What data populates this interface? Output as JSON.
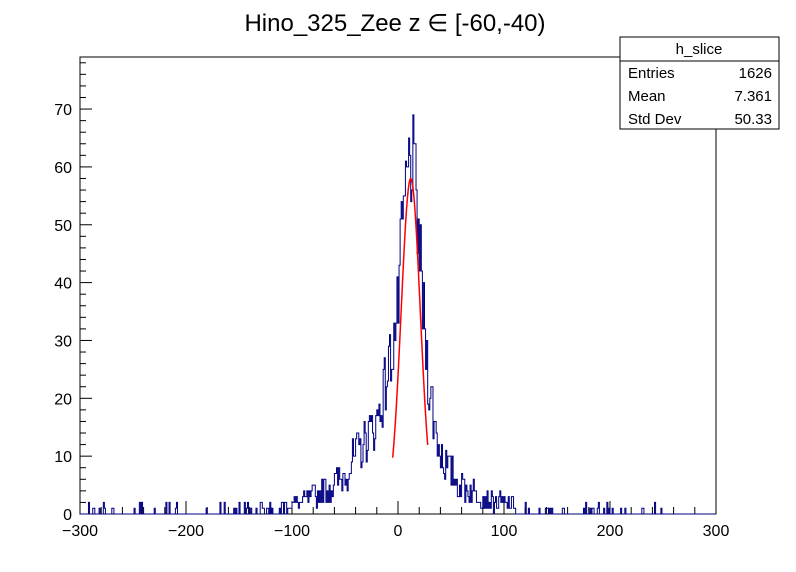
{
  "chart_data": {
    "type": "histogram",
    "title": "Hino_325_Zee z  ∈ [-60,-40)",
    "xlabel": "",
    "ylabel": "",
    "xlim": [
      -300,
      300
    ],
    "ylim": [
      0,
      79
    ],
    "x_ticks": [
      -300,
      -200,
      -100,
      0,
      100,
      200,
      300
    ],
    "y_ticks": [
      0,
      10,
      20,
      30,
      40,
      50,
      60,
      70
    ],
    "histogram_color": "#000080",
    "fit_color": "#ff0000",
    "stats": {
      "name": "h_slice",
      "rows": [
        {
          "label": "Entries",
          "value": "1626"
        },
        {
          "label": "Mean",
          "value": "7.361"
        },
        {
          "label": "Std Dev",
          "value": "50.33"
        }
      ]
    },
    "series": [
      {
        "kind": "histogram_envelope",
        "x": [
          -300,
          -280,
          -260,
          -240,
          -220,
          -200,
          -180,
          -160,
          -140,
          -120,
          -100,
          -90,
          -80,
          -70,
          -60,
          -50,
          -40,
          -30,
          -20,
          -15,
          -10,
          -5,
          0,
          3,
          6,
          9,
          12,
          15,
          18,
          21,
          24,
          27,
          30,
          35,
          40,
          50,
          60,
          70,
          80,
          90,
          100,
          120,
          140,
          160,
          180,
          200,
          220,
          240,
          260,
          280,
          300
        ],
        "values": [
          0,
          1,
          1,
          1,
          1,
          1,
          1,
          1,
          1,
          1,
          2,
          2,
          3,
          4,
          5,
          7,
          10,
          13,
          16,
          20,
          24,
          29,
          35,
          45,
          53,
          58,
          62,
          59,
          52,
          44,
          35,
          28,
          22,
          15,
          11,
          7,
          5,
          4,
          3,
          2,
          2,
          1,
          1,
          1,
          1,
          1,
          1,
          1,
          0,
          0,
          0
        ]
      },
      {
        "kind": "gaussian_fit",
        "amplitude": 58,
        "mean": 12,
        "sigma": 9,
        "range": [
          -5,
          28
        ]
      }
    ]
  }
}
